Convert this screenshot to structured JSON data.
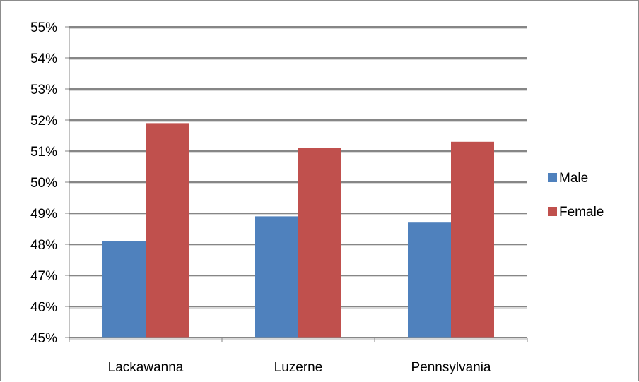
{
  "chart_data": {
    "type": "bar",
    "categories": [
      "Lackawanna",
      "Luzerne",
      "Pennsylvania"
    ],
    "series": [
      {
        "name": "Male",
        "values": [
          48.1,
          48.9,
          48.7
        ],
        "color": "#4f81bd"
      },
      {
        "name": "Female",
        "values": [
          51.9,
          51.1,
          51.3
        ],
        "color": "#c0504d"
      }
    ],
    "ylim": [
      45,
      55
    ],
    "yticks": [
      "45%",
      "46%",
      "47%",
      "48%",
      "49%",
      "50%",
      "51%",
      "52%",
      "53%",
      "54%",
      "55%"
    ],
    "grid": true,
    "legend_position": "right",
    "title": "",
    "xlabel": "",
    "ylabel": ""
  }
}
